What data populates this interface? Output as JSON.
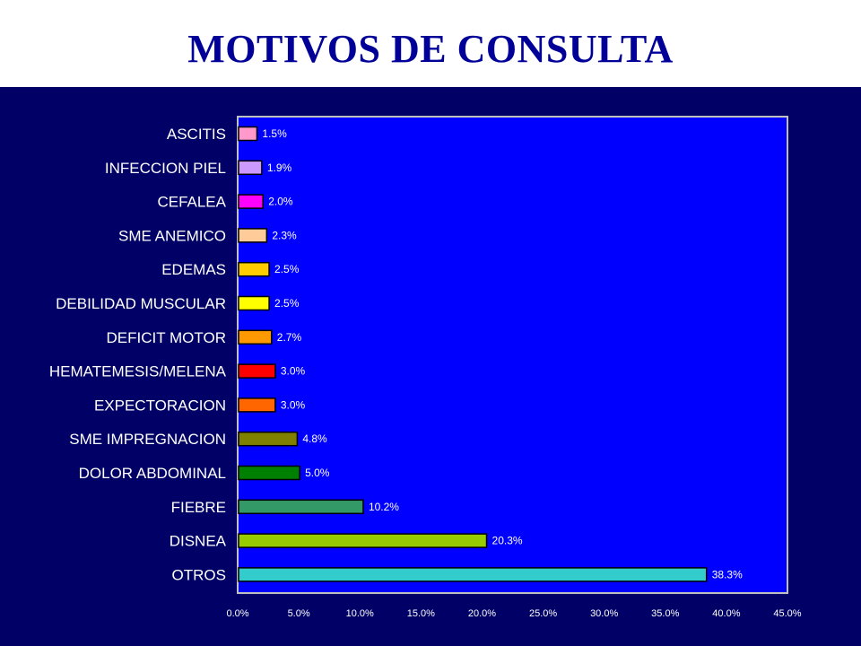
{
  "title": "MOTIVOS DE CONSULTA",
  "colors": {
    "background": "#000066",
    "plot_area": "#0000ff",
    "title": "#000099"
  },
  "chart_data": {
    "type": "bar",
    "orientation": "horizontal",
    "title": "MOTIVOS DE CONSULTA",
    "categories": [
      "ASCITIS",
      "INFECCION PIEL",
      "CEFALEA",
      "SME ANEMICO",
      "EDEMAS",
      "DEBILIDAD MUSCULAR",
      "DEFICIT MOTOR",
      "HEMATEMESIS/MELENA",
      "EXPECTORACION",
      "SME IMPREGNACION",
      "DOLOR ABDOMINAL",
      "FIEBRE",
      "DISNEA",
      "OTROS"
    ],
    "values": [
      1.5,
      1.9,
      2.0,
      2.3,
      2.5,
      2.5,
      2.7,
      3.0,
      3.0,
      4.8,
      5.0,
      10.2,
      20.3,
      38.3
    ],
    "value_labels": [
      "1.5%",
      "1.9%",
      "2.0%",
      "2.3%",
      "2.5%",
      "2.5%",
      "2.7%",
      "3.0%",
      "3.0%",
      "4.8%",
      "5.0%",
      "10.2%",
      "20.3%",
      "38.3%"
    ],
    "bar_colors": [
      "#ff99cc",
      "#cc99ff",
      "#ff00ff",
      "#ffcc99",
      "#ffcc00",
      "#ffff00",
      "#ff9900",
      "#ff0000",
      "#ff6600",
      "#808000",
      "#008000",
      "#339966",
      "#99cc00",
      "#33cccc"
    ],
    "xlim": [
      0,
      45
    ],
    "xticks": [
      0,
      5,
      10,
      15,
      20,
      25,
      30,
      35,
      40,
      45
    ],
    "xtick_labels": [
      "0.0%",
      "5.0%",
      "10.0%",
      "15.0%",
      "20.0%",
      "25.0%",
      "30.0%",
      "35.0%",
      "40.0%",
      "45.0%"
    ],
    "xlabel": "",
    "ylabel": "",
    "grid": false,
    "legend": "none"
  }
}
